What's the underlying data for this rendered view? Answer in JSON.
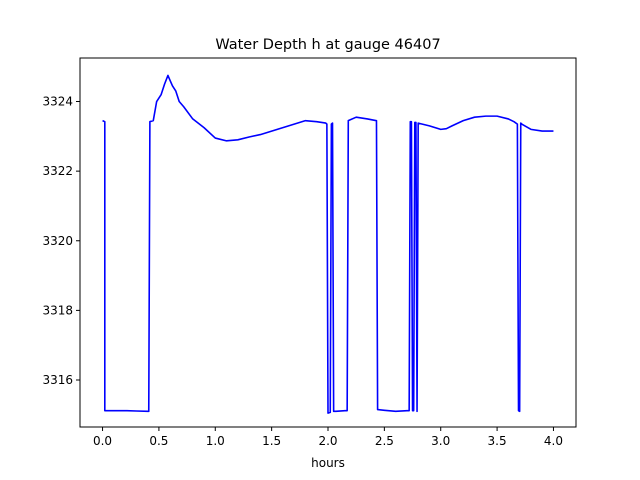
{
  "chart_data": {
    "type": "line",
    "title": "Water Depth h at gauge 46407",
    "xlabel": "hours",
    "ylabel": "",
    "xlim": [
      -0.2,
      4.2
    ],
    "ylim": [
      3314.65,
      3325.25
    ],
    "xticks": [
      0.0,
      0.5,
      1.0,
      1.5,
      2.0,
      2.5,
      3.0,
      3.5,
      4.0
    ],
    "xtick_labels": [
      "0.0",
      "0.5",
      "1.0",
      "1.5",
      "2.0",
      "2.5",
      "3.0",
      "3.5",
      "4.0"
    ],
    "yticks": [
      3316,
      3318,
      3320,
      3322,
      3324
    ],
    "ytick_labels": [
      "3316",
      "3318",
      "3320",
      "3322",
      "3324"
    ],
    "grid": false,
    "line_color": "#0000ff",
    "series": [
      {
        "x": [
          0.0,
          0.02,
          0.02,
          0.03,
          0.1,
          0.2,
          0.3,
          0.4,
          0.41,
          0.42,
          0.45,
          0.48,
          0.52,
          0.55,
          0.58,
          0.6,
          0.62,
          0.65,
          0.68,
          0.72,
          0.8,
          0.9,
          1.0,
          1.1,
          1.2,
          1.3,
          1.4,
          1.5,
          1.6,
          1.7,
          1.8,
          1.9,
          1.98,
          1.99,
          2.0,
          2.02,
          2.03,
          2.04,
          2.05,
          2.06,
          2.07,
          2.15,
          2.17,
          2.18,
          2.25,
          2.35,
          2.43,
          2.44,
          2.5,
          2.6,
          2.7,
          2.72,
          2.73,
          2.74,
          2.75,
          2.76,
          2.77,
          2.78,
          2.79,
          2.8,
          2.9,
          3.0,
          3.05,
          3.1,
          3.2,
          3.3,
          3.4,
          3.5,
          3.6,
          3.65,
          3.68,
          3.69,
          3.7,
          3.71,
          3.72,
          3.8,
          3.9,
          4.0
        ],
        "y": [
          3323.45,
          3323.42,
          3315.12,
          3315.12,
          3315.12,
          3315.12,
          3315.11,
          3315.1,
          3315.1,
          3323.42,
          3323.45,
          3324.0,
          3324.2,
          3324.5,
          3324.75,
          3324.6,
          3324.45,
          3324.3,
          3324.0,
          3323.85,
          3323.5,
          3323.25,
          3322.95,
          3322.87,
          3322.9,
          3322.98,
          3323.05,
          3323.15,
          3323.25,
          3323.35,
          3323.45,
          3323.42,
          3323.38,
          3323.35,
          3315.05,
          3315.07,
          3323.35,
          3323.38,
          3315.1,
          3315.1,
          3315.1,
          3315.12,
          3315.12,
          3323.45,
          3323.55,
          3323.5,
          3323.45,
          3315.15,
          3315.13,
          3315.1,
          3315.12,
          3315.12,
          3323.42,
          3323.42,
          3315.12,
          3315.12,
          3323.4,
          3323.4,
          3315.1,
          3323.38,
          3323.3,
          3323.2,
          3323.22,
          3323.3,
          3323.45,
          3323.55,
          3323.58,
          3323.58,
          3323.5,
          3323.42,
          3323.35,
          3315.12,
          3315.1,
          3323.38,
          3323.35,
          3323.2,
          3323.15,
          3323.15
        ]
      }
    ]
  }
}
